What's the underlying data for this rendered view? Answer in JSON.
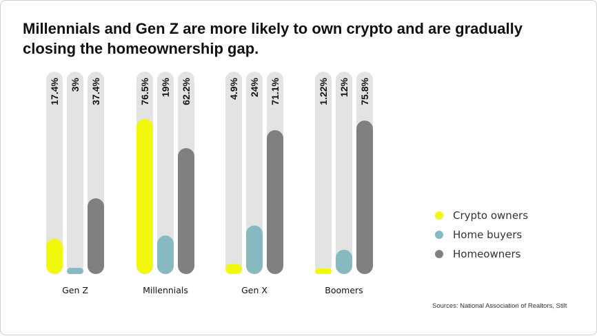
{
  "title": "Millennials and Gen Z are more likely to own crypto and are gradually closing the homeownership gap.",
  "source": "Sources:  National Association of Realtors, Stilt",
  "colors": {
    "track": "#e3e3e3",
    "crypto": "#f2f80c",
    "buyers": "#87bac0",
    "owners": "#808080"
  },
  "chart_data": {
    "type": "bar",
    "categories": [
      "Gen Z",
      "Millennials",
      "Gen X",
      "Boomers"
    ],
    "ylim": [
      0,
      100
    ],
    "series": [
      {
        "name": "Crypto owners",
        "color": "#f2f80c",
        "values": [
          17.4,
          76.5,
          4.9,
          1.22
        ],
        "labels": [
          "17.4%",
          "76.5%",
          "4.9%",
          "1.22%"
        ]
      },
      {
        "name": "Home buyers",
        "color": "#87bac0",
        "values": [
          3,
          19,
          24,
          12
        ],
        "labels": [
          "3%",
          "19%",
          "24%",
          "12%"
        ]
      },
      {
        "name": "Homeowners",
        "color": "#808080",
        "values": [
          37.4,
          62.2,
          71.1,
          75.8
        ],
        "labels": [
          "37.4%",
          "62.2%",
          "71.1%",
          "75.8%"
        ]
      }
    ],
    "legend": "right"
  }
}
